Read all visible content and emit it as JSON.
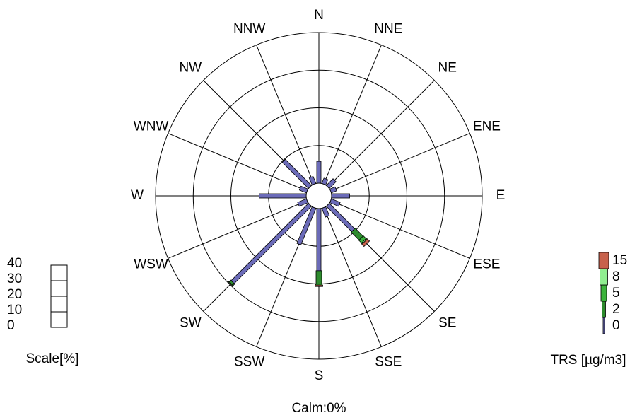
{
  "chart_data": {
    "type": "pollution-rose",
    "directions": [
      "N",
      "NNE",
      "NE",
      "ENE",
      "E",
      "ESE",
      "SE",
      "SSE",
      "S",
      "SSW",
      "SW",
      "WSW",
      "W",
      "WNW",
      "NW",
      "NNW"
    ],
    "series": [
      {
        "name": "0",
        "color": "#6b6bb8",
        "values": [
          5.8,
          1.5,
          2.5,
          1.5,
          4.8,
          2.5,
          9.5,
          2.5,
          16.5,
          10.5,
          29,
          2.5,
          12.5,
          2,
          9.8,
          2
        ]
      },
      {
        "name": "2",
        "color": "#2e8b2e",
        "values": [
          0,
          0,
          0,
          0,
          0,
          0,
          3,
          0,
          3.5,
          0,
          0.6,
          0,
          0,
          0,
          0,
          0
        ]
      },
      {
        "name": "5",
        "color": "#3cb43c",
        "values": [
          0,
          0,
          0,
          0,
          0,
          0,
          1,
          0,
          0.3,
          0,
          0.2,
          0,
          0,
          0,
          0,
          0
        ]
      },
      {
        "name": "8",
        "color": "#90ee90",
        "values": [
          0,
          0,
          0,
          0,
          0,
          0,
          0.3,
          0,
          0,
          0,
          0,
          0,
          0,
          0,
          0,
          0
        ]
      },
      {
        "name": "15",
        "color": "#c8624c",
        "values": [
          0,
          0,
          0,
          0,
          0,
          0,
          0.8,
          0,
          0.4,
          0,
          0,
          0,
          0,
          0,
          0,
          0
        ]
      }
    ],
    "rlim": [
      0,
      40
    ],
    "rticks": [
      0,
      10,
      20,
      30,
      40
    ],
    "scale_label": "Scale[%]",
    "legend_title": "TRS [µg/m3]",
    "calm": "Calm:0%"
  }
}
